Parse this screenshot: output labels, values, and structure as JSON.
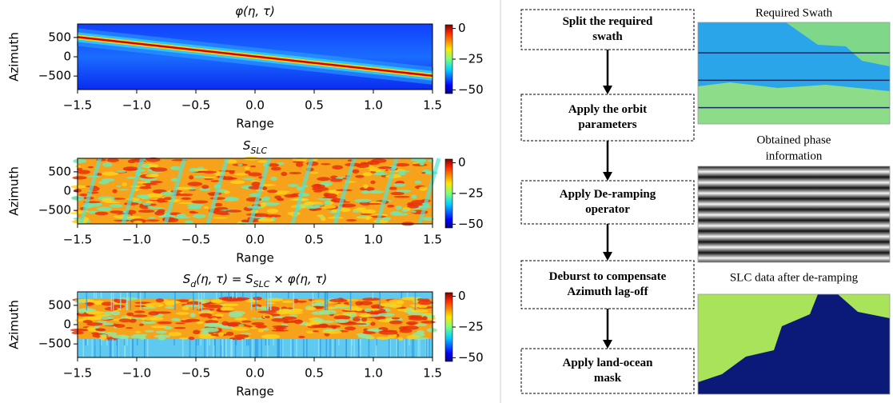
{
  "chart_data": [
    {
      "type": "heatmap",
      "title_parts": [
        {
          "text": "φ(η, τ)"
        }
      ],
      "x_label": "Range",
      "y_label": "Azimuth",
      "xlim": [
        -1.5,
        1.5
      ],
      "xticks": [
        {
          "value": -1.5,
          "label": "−1.5"
        },
        {
          "value": -1.0,
          "label": "−1.0"
        },
        {
          "value": -0.5,
          "label": "−0.5"
        },
        {
          "value": 0,
          "label": "0.0"
        },
        {
          "value": 0.5,
          "label": "0.5"
        },
        {
          "value": 1.0,
          "label": "1.0"
        },
        {
          "value": 1.5,
          "label": "1.5"
        }
      ],
      "ylim": [
        -850,
        850
      ],
      "yticks": [
        500,
        0,
        {
          "value": -500,
          "label": "−500"
        }
      ],
      "clim": [
        -53,
        3
      ],
      "cticks": [
        0,
        {
          "value": -25,
          "label": "−25"
        },
        {
          "value": -50,
          "label": "−50"
        }
      ]
    },
    {
      "type": "heatmap",
      "title_parts": [
        {
          "text": "S"
        },
        {
          "text": "SLC",
          "sub": true
        }
      ],
      "x_label": "Range",
      "y_label": "Azimuth",
      "xlim": [
        -1.5,
        1.5
      ],
      "xticks": [
        {
          "value": -1.5,
          "label": "−1.5"
        },
        {
          "value": -1.0,
          "label": "−1.0"
        },
        {
          "value": -0.5,
          "label": "−0.5"
        },
        {
          "value": 0,
          "label": "0.0"
        },
        {
          "value": 0.5,
          "label": "0.5"
        },
        {
          "value": 1.0,
          "label": "1.0"
        },
        {
          "value": 1.5,
          "label": "1.5"
        }
      ],
      "ylim": [
        -850,
        850
      ],
      "yticks": [
        500,
        0,
        {
          "value": -500,
          "label": "−500"
        }
      ],
      "clim": [
        -53,
        3
      ],
      "cticks": [
        0,
        {
          "value": -25,
          "label": "−25"
        },
        {
          "value": -50,
          "label": "−50"
        }
      ]
    },
    {
      "type": "heatmap",
      "title_parts": [
        {
          "text": "S"
        },
        {
          "text": "d",
          "sub": true
        },
        {
          "text": "(η, τ) = S"
        },
        {
          "text": "SLC",
          "sub": true
        },
        {
          "text": " × φ(η, τ)"
        }
      ],
      "x_label": "Range",
      "y_label": "Azimuth",
      "xlim": [
        -1.5,
        1.5
      ],
      "xticks": [
        {
          "value": -1.5,
          "label": "−1.5"
        },
        {
          "value": -1.0,
          "label": "−1.0"
        },
        {
          "value": -0.5,
          "label": "−0.5"
        },
        {
          "value": 0,
          "label": "0.0"
        },
        {
          "value": 0.5,
          "label": "0.5"
        },
        {
          "value": 1.0,
          "label": "1.0"
        },
        {
          "value": 1.5,
          "label": "1.5"
        }
      ],
      "ylim": [
        -850,
        850
      ],
      "yticks": [
        500,
        0,
        {
          "value": -500,
          "label": "−500"
        }
      ],
      "clim": [
        -53,
        3
      ],
      "cticks": [
        0,
        {
          "value": -25,
          "label": "−25"
        },
        {
          "value": -50,
          "label": "−50"
        }
      ]
    }
  ],
  "flowchart": {
    "steps": [
      {
        "lines": [
          "Split the required",
          "swath"
        ]
      },
      {
        "lines": [
          "Apply the orbit",
          "parameters"
        ]
      },
      {
        "lines": [
          "Apply De-ramping",
          "operator"
        ]
      },
      {
        "lines": [
          "Deburst to compensate",
          "Azimuth lag-off"
        ]
      },
      {
        "lines": [
          "Apply land-ocean",
          "mask"
        ]
      }
    ]
  },
  "images": [
    {
      "caption_lines": [
        "Required Swath"
      ]
    },
    {
      "caption_lines": [
        "Obtained phase",
        "information"
      ]
    },
    {
      "caption_lines": [
        "SLC data after de-ramping"
      ]
    }
  ]
}
